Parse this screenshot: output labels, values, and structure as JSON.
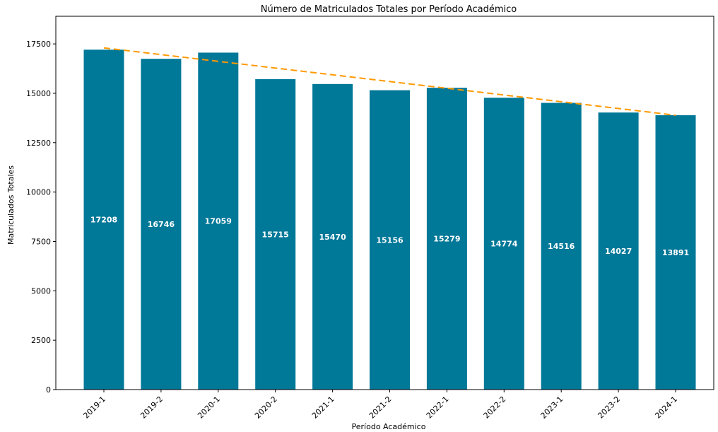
{
  "chart_data": {
    "type": "bar",
    "title": "Número de Matriculados Totales por Período Académico",
    "xlabel": "Período Académico",
    "ylabel": "Matriculados Totales",
    "categories": [
      "2019-1",
      "2019-2",
      "2020-1",
      "2020-2",
      "2021-1",
      "2021-2",
      "2022-1",
      "2022-2",
      "2023-1",
      "2023-2",
      "2024-1"
    ],
    "values": [
      17208,
      16746,
      17059,
      15715,
      15470,
      15156,
      15279,
      14774,
      14516,
      14027,
      13891
    ],
    "ylim": [
      0,
      18900
    ],
    "yticks": [
      0,
      2500,
      5000,
      7500,
      10000,
      12500,
      15000,
      17500
    ],
    "trend_line": {
      "start": 17300,
      "end": 13890,
      "style": "dashed"
    },
    "grid": false,
    "legend": "none",
    "colors": {
      "bar": "#007898",
      "trend": "#ff9900",
      "label": "#ffffff"
    }
  }
}
